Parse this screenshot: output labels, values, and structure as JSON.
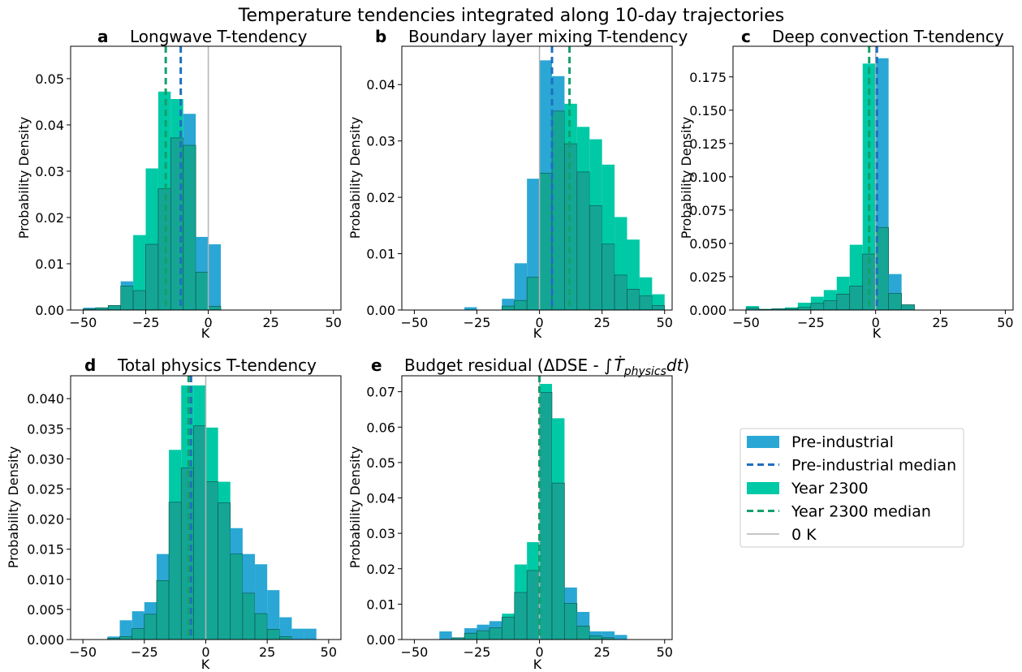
{
  "figure_title": "Temperature tendencies integrated along 10-day trajectories",
  "colors": {
    "pre_industrial": "#2aa7d4",
    "pre_industrial_median": "#1f6fc0",
    "year_2300": "#00c9a6",
    "year_2300_median": "#13a06a",
    "overlap": "#15a595",
    "zero_line": "#b4b4b4"
  },
  "legend": {
    "items": [
      {
        "label": "Pre-industrial",
        "kind": "patch",
        "color_key": "pre_industrial"
      },
      {
        "label": "Pre-industrial median",
        "kind": "dashed",
        "color_key": "pre_industrial_median"
      },
      {
        "label": "Year 2300",
        "kind": "patch",
        "color_key": "year_2300"
      },
      {
        "label": "Year 2300 median",
        "kind": "dashed",
        "color_key": "year_2300_median"
      },
      {
        "label": "0 K",
        "kind": "line",
        "color_key": "zero_line"
      }
    ]
  },
  "chart_data": [
    {
      "type": "bar",
      "panel_letter": "a",
      "title": "Longwave T-tendency",
      "xlabel": "K",
      "ylabel": "Probability Density",
      "xlim": [
        -55,
        53
      ],
      "ylim": [
        0,
        0.057
      ],
      "xticks": [
        -50,
        -25,
        0,
        25,
        50
      ],
      "yticks": [
        0.0,
        0.01,
        0.02,
        0.03,
        0.04,
        0.05
      ],
      "ytick_labels": [
        "0.00",
        "0.01",
        "0.02",
        "0.03",
        "0.04",
        "0.05"
      ],
      "bin_edges": [
        -50,
        -45,
        -40,
        -35,
        -30,
        -25,
        -20,
        -15,
        -10,
        -5,
        0,
        5
      ],
      "series": [
        {
          "name": "Pre-industrial",
          "values": [
            0.0005,
            0.0005,
            0.001,
            0.0062,
            0.0042,
            0.0142,
            0.0262,
            0.0372,
            0.0424,
            0.0158,
            0.0142
          ]
        },
        {
          "name": "Year 2300",
          "values": [
            0.0002,
            0.0005,
            0.001,
            0.0052,
            0.0162,
            0.0306,
            0.0472,
            0.0456,
            0.0356,
            0.0082,
            0.0008
          ]
        }
      ],
      "medians": {
        "Pre-industrial": -11,
        "Year 2300": -17
      }
    },
    {
      "type": "bar",
      "panel_letter": "b",
      "title": "Boundary layer mixing T-tendency",
      "xlabel": "K",
      "ylabel": "Probability Density",
      "xlim": [
        -55,
        53
      ],
      "ylim": [
        0,
        0.0468
      ],
      "xticks": [
        -50,
        -25,
        0,
        25,
        50
      ],
      "yticks": [
        0.0,
        0.01,
        0.02,
        0.03,
        0.04
      ],
      "ytick_labels": [
        "0.00",
        "0.01",
        "0.02",
        "0.03",
        "0.04"
      ],
      "bin_edges": [
        -30,
        -25,
        -20,
        -15,
        -10,
        -5,
        0,
        5,
        10,
        15,
        20,
        25,
        30,
        35,
        40,
        45,
        50
      ],
      "series": [
        {
          "name": "Pre-industrial",
          "values": [
            0.0005,
            0,
            0,
            0.002,
            0.0083,
            0.0233,
            0.0443,
            0.0415,
            0.0295,
            0.0245,
            0.0185,
            0.0117,
            0.0062,
            0.0037,
            0.0025,
            0.0008
          ]
        },
        {
          "name": "Year 2300",
          "values": [
            0,
            0,
            0,
            0.0007,
            0.0017,
            0.0058,
            0.0243,
            0.0353,
            0.0366,
            0.0325,
            0.0303,
            0.0258,
            0.0165,
            0.0125,
            0.0058,
            0.0028
          ]
        }
      ],
      "medians": {
        "Pre-industrial": 5,
        "Year 2300": 12
      }
    },
    {
      "type": "bar",
      "panel_letter": "c",
      "title": "Deep convection T-tendency",
      "xlabel": "K",
      "ylabel": "Probability Density",
      "xlim": [
        -55,
        53
      ],
      "ylim": [
        0,
        0.198
      ],
      "xticks": [
        -50,
        -25,
        0,
        25,
        50
      ],
      "yticks": [
        0,
        0.025,
        0.05,
        0.075,
        0.1,
        0.125,
        0.15,
        0.175
      ],
      "ytick_labels": [
        "0.000",
        "0.025",
        "0.050",
        "0.075",
        "0.100",
        "0.125",
        "0.150",
        "0.175"
      ],
      "bin_edges": [
        -50,
        -45,
        -40,
        -35,
        -30,
        -25,
        -20,
        -15,
        -10,
        -5,
        0,
        5,
        10,
        15
      ],
      "series": [
        {
          "name": "Pre-industrial",
          "values": [
            0.0015,
            0.0005,
            0.001,
            0.001,
            0.002,
            0.005,
            0.007,
            0.012,
            0.018,
            0.042,
            0.189,
            0.027,
            0.004
          ]
        },
        {
          "name": "Year 2300",
          "values": [
            0.003,
            0.0008,
            0.001,
            0.002,
            0.0055,
            0.01,
            0.015,
            0.025,
            0.049,
            0.185,
            0.062,
            0.0125,
            0.004
          ]
        }
      ],
      "medians": {
        "Pre-industrial": 0.5,
        "Year 2300": -2.5
      }
    },
    {
      "type": "bar",
      "panel_letter": "d",
      "title": "Total physics T-tendency",
      "xlabel": "K",
      "ylabel": "Probability Density",
      "xlim": [
        -55,
        55
      ],
      "ylim": [
        0,
        0.0438
      ],
      "xticks": [
        -50,
        -25,
        0,
        25,
        50
      ],
      "yticks": [
        0,
        0.005,
        0.01,
        0.015,
        0.02,
        0.025,
        0.03,
        0.035,
        0.04
      ],
      "ytick_labels": [
        "0.000",
        "0.005",
        "0.010",
        "0.015",
        "0.020",
        "0.025",
        "0.030",
        "0.035",
        "0.040"
      ],
      "bin_edges": [
        -40,
        -35,
        -30,
        -25,
        -20,
        -15,
        -10,
        -5,
        0,
        5,
        10,
        15,
        20,
        25,
        30,
        35,
        40,
        45
      ],
      "series": [
        {
          "name": "Pre-industrial",
          "values": [
            0.0005,
            0.0032,
            0.0047,
            0.0062,
            0.0142,
            0.0228,
            0.0285,
            0.0355,
            0.0262,
            0.0227,
            0.0185,
            0.0142,
            0.0125,
            0.0082,
            0.0037,
            0.0018,
            0.0018
          ]
        },
        {
          "name": "Year 2300",
          "values": [
            0.0002,
            0.0005,
            0.0018,
            0.0042,
            0.0098,
            0.0315,
            0.0422,
            0.0422,
            0.0352,
            0.0262,
            0.0142,
            0.0077,
            0.0043,
            0.0017,
            0.0005,
            0.0,
            0.0
          ]
        }
      ],
      "medians": {
        "Pre-industrial": -6,
        "Year 2300": -7
      }
    },
    {
      "type": "bar",
      "panel_letter": "e",
      "title": "Budget residual (ΔDSE - ∫",
      "title_math": "T_physics dt",
      "xlabel": "K",
      "ylabel": "Probability Density",
      "xlim": [
        -55,
        53
      ],
      "ylim": [
        0,
        0.0745
      ],
      "xticks": [
        -50,
        -25,
        0,
        25,
        50
      ],
      "yticks": [
        0,
        0.01,
        0.02,
        0.03,
        0.04,
        0.05,
        0.06,
        0.07
      ],
      "ytick_labels": [
        "0.00",
        "0.01",
        "0.02",
        "0.03",
        "0.04",
        "0.05",
        "0.06",
        "0.07"
      ],
      "bin_edges": [
        -40,
        -35,
        -30,
        -25,
        -20,
        -15,
        -10,
        -5,
        0,
        5,
        10,
        15,
        20,
        25,
        30,
        35
      ],
      "series": [
        {
          "name": "Pre-industrial",
          "values": [
            0.0023,
            0.0005,
            0.0032,
            0.0042,
            0.0052,
            0.0063,
            0.0133,
            0.0195,
            0.0698,
            0.0442,
            0.0147,
            0.0078,
            0.0023,
            0.0023,
            0.0013
          ]
        },
        {
          "name": "Year 2300",
          "values": [
            0.0,
            0.0005,
            0.0018,
            0.0025,
            0.0033,
            0.0073,
            0.0212,
            0.0275,
            0.0722,
            0.0625,
            0.0102,
            0.0038,
            0.001,
            0.0005,
            0.0
          ]
        }
      ],
      "medians": {
        "Pre-industrial": 0,
        "Year 2300": 0
      }
    }
  ]
}
